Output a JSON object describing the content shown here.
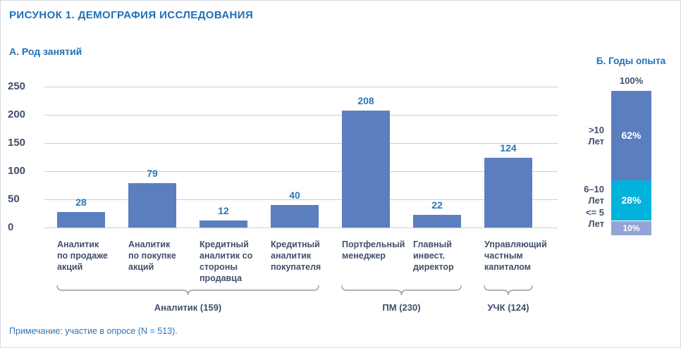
{
  "figure": {
    "title": "РИСУНОК 1. ДЕМОГРАФИЯ ИССЛЕДОВАНИЯ",
    "note": "Примечание: участие в опросе (N = 513).",
    "accent_blue": "#1f70b6",
    "text_navy": "#414f6b"
  },
  "chart_data": [
    {
      "type": "bar",
      "title": "А. Род занятий",
      "bar_color": "#5b7ebf",
      "value_label_color": "#2e75b5",
      "ylim": [
        0,
        250
      ],
      "yticks": [
        0,
        50,
        100,
        150,
        200,
        250
      ],
      "categories": [
        [
          "Аналитик",
          "по продаже",
          "акций"
        ],
        [
          "Аналитик",
          "по покупке",
          "акций"
        ],
        [
          "Кредитный",
          "аналитик со",
          "стороны",
          "продавца"
        ],
        [
          "Кредитный",
          "аналитик",
          "покупателя"
        ],
        [
          "Портфельный",
          "менеджер"
        ],
        [
          "Главный",
          "инвест.",
          "директор"
        ],
        [
          "Управляющий",
          "частным",
          "капиталом"
        ]
      ],
      "values": [
        28,
        79,
        12,
        40,
        208,
        22,
        124
      ],
      "groups": [
        {
          "label": "Аналитик (159)",
          "from": 0,
          "to": 3
        },
        {
          "label": "ПМ (230)",
          "from": 4,
          "to": 5
        },
        {
          "label": "УЧК (124)",
          "from": 6,
          "to": 6
        }
      ]
    },
    {
      "type": "stacked_bar",
      "title": "Б. Годы опыта",
      "axis_top_label": "100%",
      "segments": [
        {
          "label_lines": [
            ">10",
            "Лет"
          ],
          "value_pct": 62,
          "value_label": "62%",
          "color": "#5b7ebf"
        },
        {
          "label_lines": [
            "6–10",
            "Лет"
          ],
          "value_pct": 28,
          "value_label": "28%",
          "color": "#00b3dc"
        },
        {
          "label_lines": [
            "<= 5",
            "Лет"
          ],
          "value_pct": 10,
          "value_label": "10%",
          "color": "#94a5d4"
        }
      ]
    }
  ]
}
